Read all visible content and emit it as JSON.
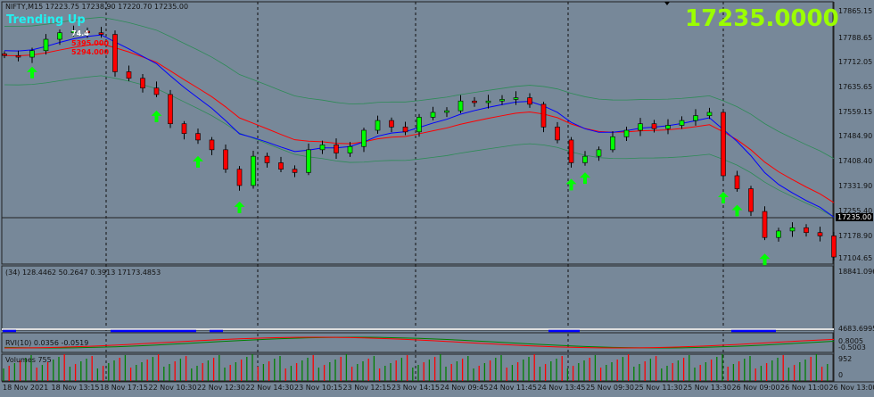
{
  "header": {
    "symbol_info": "NIFTY,M15  17223.75 17238.90 17220.70 17235.00",
    "trend_label": "Trending Up",
    "big_price": "17235.0000",
    "marker_value": "74.4",
    "level_1": "5395.000",
    "level_2": "5294.000"
  },
  "price_axis": {
    "labels": [
      "17865.15",
      "17788.65",
      "17712.05",
      "17635.65",
      "17559.15",
      "17484.90",
      "17408.40",
      "17331.90",
      "17255.40",
      "17178.90",
      "17104.65"
    ],
    "current": "17235.00"
  },
  "indicator_panel": {
    "label": "(34) 128.4462 50.2647 0.3913 17173.4853",
    "top_value": "18841.0968",
    "bottom_value": "4683.6995"
  },
  "rvi_panel": {
    "label": "RVI(10) 0.0356 -0.0519",
    "top_value": "0.8005",
    "bottom_value": "-0.5003"
  },
  "volume_panel": {
    "label": "Volumes 755",
    "top_value": "952",
    "bottom_value": "0"
  },
  "time_axis": [
    "18 Nov 2021",
    "18 Nov 13:15",
    "18 Nov 17:15",
    "22 Nov 10:30",
    "22 Nov 12:30",
    "22 Nov 14:30",
    "23 Nov 10:15",
    "23 Nov 12:15",
    "23 Nov 14:15",
    "24 Nov 09:45",
    "24 Nov 11:45",
    "24 Nov 13:45",
    "25 Nov 09:30",
    "25 Nov 11:30",
    "25 Nov 13:30",
    "26 Nov 09:00",
    "26 Nov 11:00",
    "26 Nov 13:00"
  ],
  "colors": {
    "background": "#778899",
    "bull": "#00ff00",
    "bear": "#ff0000",
    "ma_fast": "#0000ff",
    "ma_slow": "#ff0000",
    "bands": "#2e8b57",
    "arrow": "#00ff00"
  },
  "chart_data": {
    "type": "candlestick",
    "closes": [
      17730,
      17725,
      17745,
      17780,
      17800,
      17805,
      17800,
      17795,
      17680,
      17660,
      17630,
      17610,
      17520,
      17490,
      17470,
      17440,
      17380,
      17330,
      17420,
      17400,
      17380,
      17370,
      17440,
      17455,
      17430,
      17450,
      17500,
      17530,
      17510,
      17495,
      17540,
      17555,
      17560,
      17590,
      17585,
      17590,
      17595,
      17600,
      17580,
      17510,
      17470,
      17400,
      17420,
      17440,
      17480,
      17500,
      17520,
      17505,
      17515,
      17530,
      17545,
      17555,
      17360,
      17320,
      17250,
      17170,
      17190,
      17200,
      17185,
      17175,
      17110
    ],
    "ylim": [
      17104.65,
      17865.15
    ],
    "arrow_candles": [
      2,
      11,
      14,
      17,
      41,
      42,
      52,
      53,
      55
    ]
  }
}
